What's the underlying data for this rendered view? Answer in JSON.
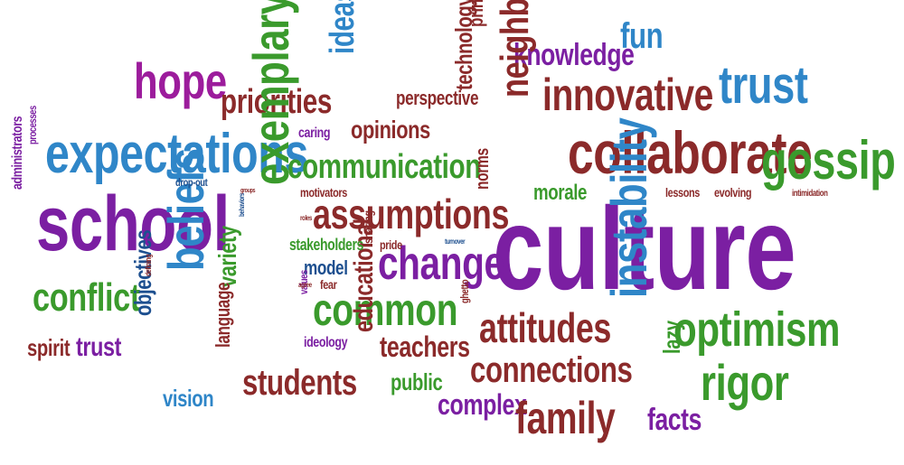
{
  "palette": {
    "purple": "#7b1fa2",
    "magenta": "#9c1c9c",
    "blue": "#2f86c8",
    "green": "#3a9a2c",
    "maroon": "#8b2a2a",
    "darkblue": "#1d4f8f"
  },
  "words": {
    "culture": "culture",
    "school": "school",
    "expectations": "expectations",
    "collaborate": "collaborate",
    "gossip": "gossip",
    "innovative": "innovative",
    "trust_top": "trust",
    "hope": "hope",
    "priorities": "priorities",
    "ideas": "ideas",
    "perspective": "perspective",
    "principals": "principals",
    "knowledge": "knowledge",
    "fun": "fun",
    "neighbor": "neighbor",
    "technology": "technology",
    "opinions": "opinions",
    "caring": "caring",
    "communication": "communication",
    "assumptions": "assumptions",
    "change": "change",
    "common": "common",
    "exemplary": "exemplary",
    "beliefs": "beliefs",
    "variety": "variety",
    "conflict": "conflict",
    "spirit": "spirit",
    "trust_small": "trust",
    "objectives": "objectives",
    "language": "language",
    "vision": "vision",
    "students": "students",
    "educational": "educational",
    "teachers": "teachers",
    "public": "public",
    "complex": "complex",
    "family": "family",
    "connections": "connections",
    "attitudes": "attitudes",
    "instability": "instability",
    "lazy": "lazy",
    "facts": "facts",
    "rigor": "rigor",
    "optimism": "optimism",
    "morale": "morale",
    "lessons": "lessons",
    "evolving": "evolving",
    "intimidation": "intimidation",
    "norms": "norms",
    "motivators": "motivators",
    "stakeholders": "stakeholders",
    "pride": "pride",
    "model": "model",
    "sharing": "sharing",
    "fear": "fear",
    "values": "values",
    "ideology": "ideology",
    "ghetto": "ghetto",
    "turnover": "turnover",
    "drop_out": "drop-out",
    "processes": "processes",
    "administrators": "administrators",
    "defining": "defining",
    "behaviors": "behaviors",
    "agree": "agree",
    "roles": "roles",
    "groups": "groups"
  }
}
